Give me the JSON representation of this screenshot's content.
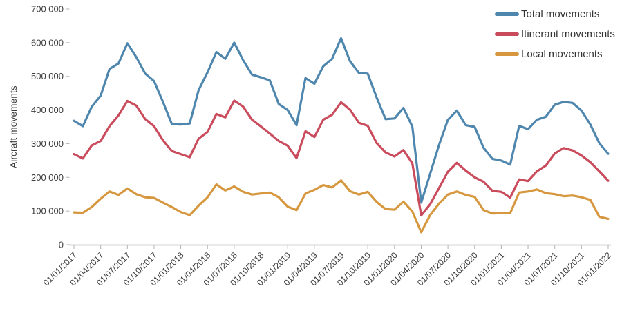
{
  "chart_data": {
    "type": "line",
    "title": "",
    "xlabel": "",
    "ylabel": "Aircraft movements",
    "ylim": [
      0,
      700000
    ],
    "grid": false,
    "legend_position": "top-right",
    "x_start": "01/01/2017",
    "x_end": "01/01/2022",
    "x_interval": "monthly",
    "xticks": [
      "01/01/2017",
      "01/04/2017",
      "01/07/2017",
      "01/10/2017",
      "01/01/2018",
      "01/04/2018",
      "01/07/2018",
      "01/10/2018",
      "01/01/2019",
      "01/04/2019",
      "01/07/2019",
      "01/10/2019",
      "01/01/2020",
      "01/04/2020",
      "01/07/2020",
      "01/10/2020",
      "01/01/2021",
      "01/04/2021",
      "01/07/2021",
      "01/10/2021",
      "01/01/2022"
    ],
    "yticks": [
      {
        "label": "0",
        "value": 0
      },
      {
        "label": "100 000",
        "value": 100000
      },
      {
        "label": "200 000",
        "value": 200000
      },
      {
        "label": "300 000",
        "value": 300000
      },
      {
        "label": "400 000",
        "value": 400000
      },
      {
        "label": "500 000",
        "value": 500000
      },
      {
        "label": "600 000",
        "value": 600000
      },
      {
        "label": "700 000",
        "value": 700000
      }
    ],
    "series": [
      {
        "name": "Total movements",
        "color": "#4e86ad",
        "values": [
          368000,
          352000,
          410000,
          443000,
          522000,
          538000,
          598000,
          557000,
          508000,
          486000,
          424000,
          358000,
          357000,
          360000,
          459000,
          512000,
          572000,
          552000,
          600000,
          548000,
          505000,
          497000,
          488000,
          418000,
          400000,
          355000,
          495000,
          478000,
          530000,
          552000,
          613000,
          545000,
          510000,
          508000,
          437000,
          373000,
          375000,
          406000,
          351000,
          125000,
          210000,
          296000,
          371000,
          398000,
          355000,
          350000,
          288000,
          255000,
          250000,
          238000,
          353000,
          343000,
          371000,
          380000,
          416000,
          424000,
          421000,
          398000,
          357000,
          302000,
          270000
        ]
      },
      {
        "name": "Itinerant movements",
        "color": "#c94b5c",
        "values": [
          269000,
          256000,
          295000,
          308000,
          352000,
          384000,
          427000,
          413000,
          373000,
          352000,
          310000,
          278000,
          269000,
          260000,
          315000,
          335000,
          388000,
          378000,
          428000,
          410000,
          371000,
          351000,
          330000,
          308000,
          294000,
          257000,
          337000,
          320000,
          371000,
          386000,
          423000,
          401000,
          362000,
          353000,
          302000,
          274000,
          262000,
          281000,
          242000,
          87000,
          120000,
          168000,
          217000,
          243000,
          220000,
          200000,
          187000,
          160000,
          157000,
          140000,
          194000,
          189000,
          218000,
          235000,
          271000,
          287000,
          280000,
          265000,
          245000,
          218000,
          190000
        ]
      },
      {
        "name": "Local movements",
        "color": "#d6973e",
        "values": [
          96000,
          95000,
          112000,
          137000,
          158000,
          148000,
          167000,
          150000,
          141000,
          139000,
          125000,
          112000,
          97000,
          88000,
          116000,
          141000,
          179000,
          161000,
          173000,
          157000,
          149000,
          152000,
          155000,
          141000,
          113000,
          103000,
          152000,
          163000,
          177000,
          170000,
          191000,
          159000,
          149000,
          157000,
          127000,
          106000,
          104000,
          128000,
          99000,
          37000,
          88000,
          122000,
          149000,
          158000,
          148000,
          142000,
          103000,
          93000,
          94000,
          94000,
          155000,
          158000,
          164000,
          153000,
          150000,
          144000,
          146000,
          141000,
          133000,
          83000,
          77000
        ]
      }
    ]
  },
  "axis": {
    "y_title": "Aircraft movements"
  },
  "style": {
    "axis_line_color": "#d4d4d4",
    "tick_color": "#b3b3b3",
    "tick_label_color": "#3d3d3d"
  }
}
